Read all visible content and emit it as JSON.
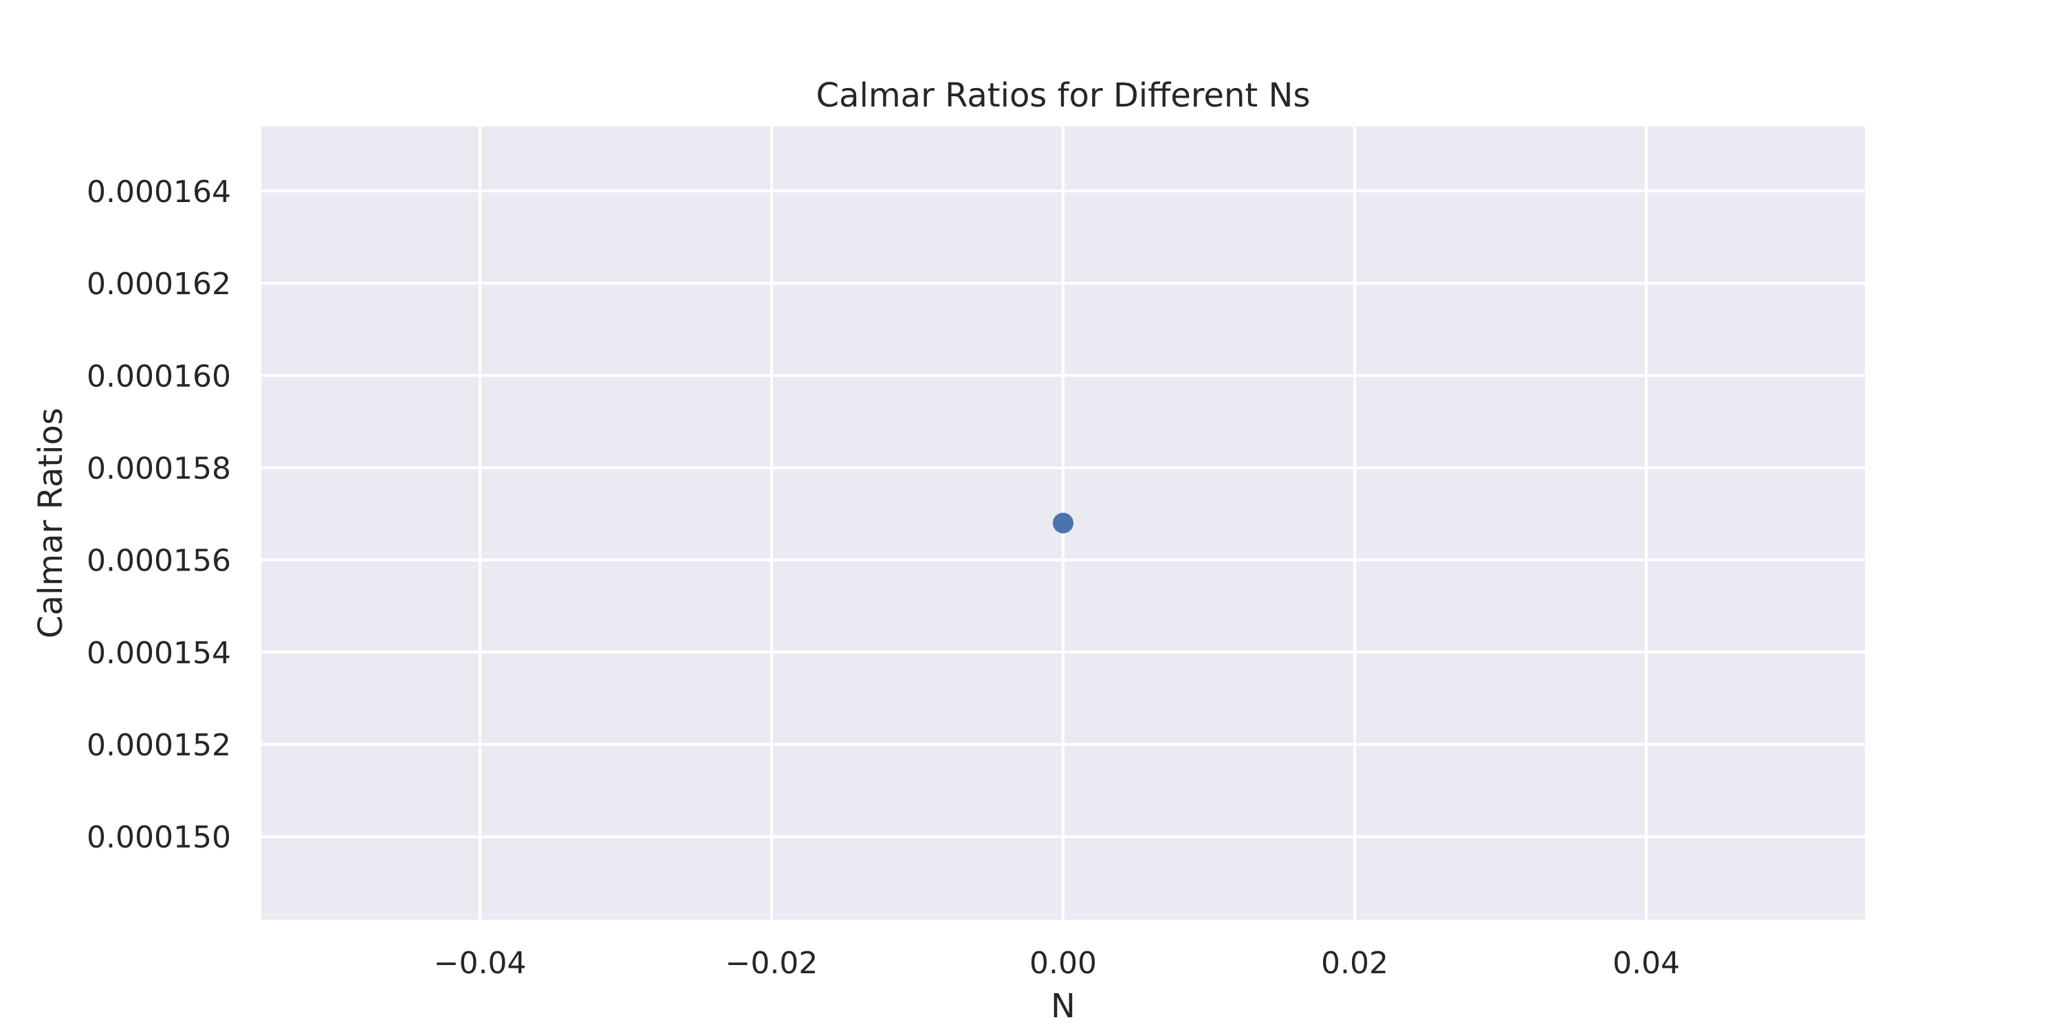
{
  "chart_data": {
    "type": "scatter",
    "title": "Calmar Ratios for Different Ns",
    "xlabel": "N",
    "ylabel": "Calmar Ratios",
    "xlim": [
      -0.055,
      0.055
    ],
    "ylim": [
      0.0001482,
      0.0001654
    ],
    "x_ticks": [
      -0.04,
      -0.02,
      0.0,
      0.02,
      0.04
    ],
    "x_tick_labels": [
      "−0.04",
      "−0.02",
      "0.00",
      "0.02",
      "0.04"
    ],
    "y_ticks": [
      0.00015,
      0.000152,
      0.000154,
      0.000156,
      0.000158,
      0.00016,
      0.000162,
      0.000164
    ],
    "y_tick_labels": [
      "0.000150",
      "0.000152",
      "0.000154",
      "0.000156",
      "0.000158",
      "0.000160",
      "0.000162",
      "0.000164"
    ],
    "grid": true,
    "series": [
      {
        "x": [
          0.0
        ],
        "y": [
          0.0001568
        ]
      }
    ],
    "colors": {
      "background": "#eaeaf2",
      "grid": "#ffffff",
      "point": "#4c72b0",
      "text": "#262626"
    }
  }
}
